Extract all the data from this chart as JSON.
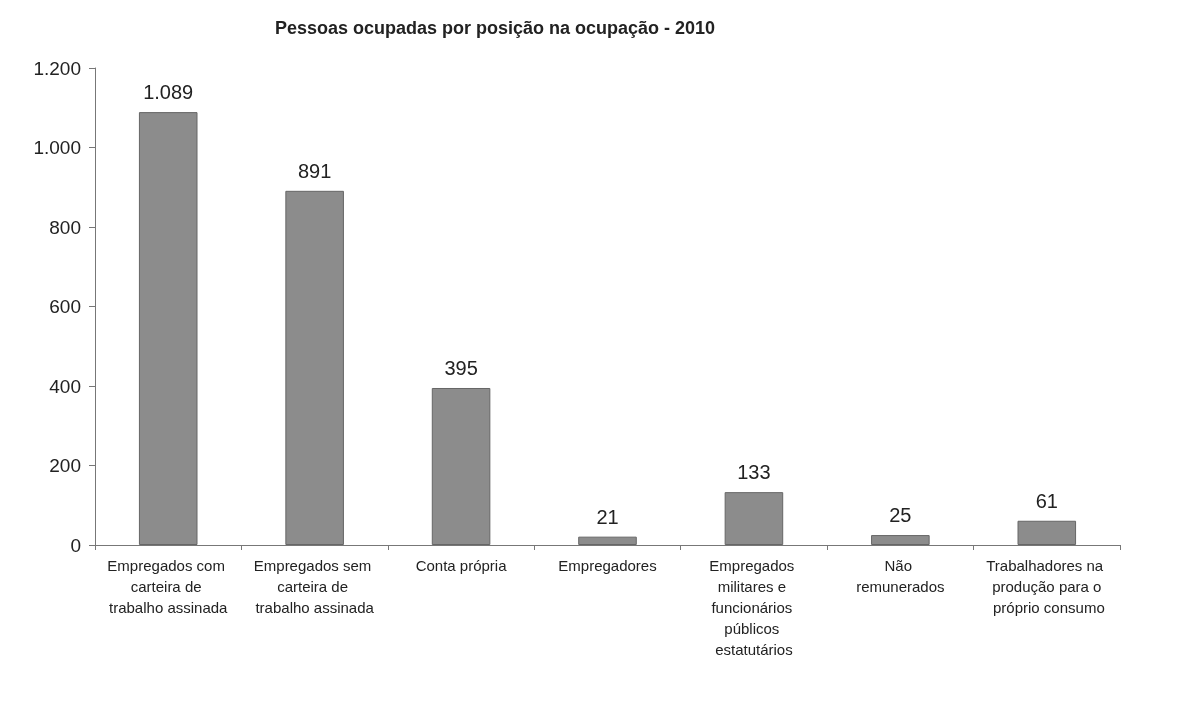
{
  "chart_data": {
    "type": "bar",
    "title": "Pessoas ocupadas por posição na ocupação - 2010",
    "categories": [
      "Empregados com carteira de trabalho assinada",
      "Empregados sem carteira de trabalho assinada",
      "Conta própria",
      "Empregadores",
      "Empregados militares e funcionários públicos estatutários",
      "Não remunerados",
      "Trabalhadores na produção para o próprio consumo"
    ],
    "values": [
      1089,
      891,
      395,
      21,
      133,
      25,
      61
    ],
    "value_labels": [
      "1.089",
      "891",
      "395",
      "21",
      "133",
      "25",
      "61"
    ],
    "color": "#8c8c8c",
    "ylim": [
      0,
      1200
    ],
    "yticks": [
      0,
      200,
      400,
      600,
      800,
      {
        "value": 1000,
        "label": "1.000"
      },
      {
        "value": 1200,
        "label": "1.200"
      }
    ],
    "grid": false
  }
}
